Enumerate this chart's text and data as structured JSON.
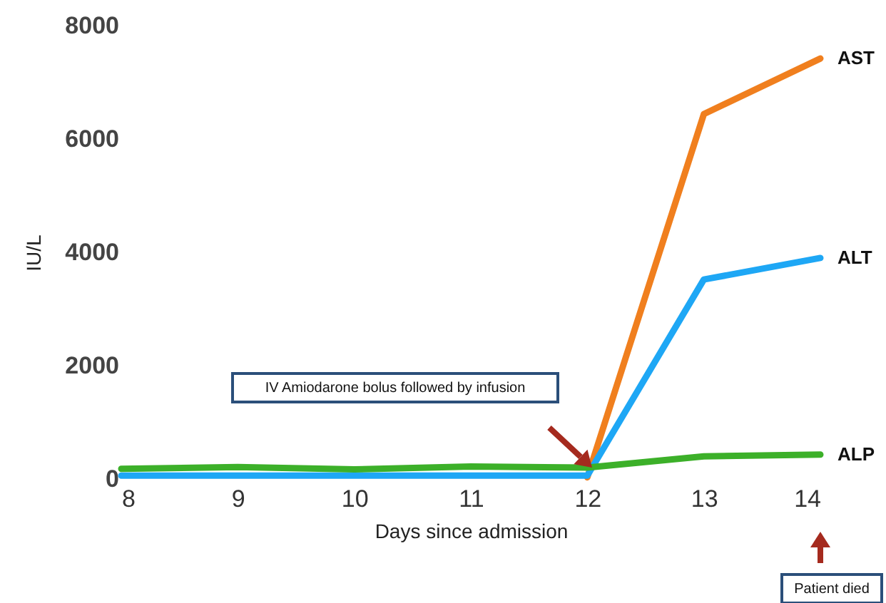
{
  "chart_data": {
    "type": "line",
    "xlabel": "Days since admission",
    "ylabel": "IU/L",
    "x": [
      8,
      9,
      10,
      11,
      12,
      13,
      14
    ],
    "xlim": [
      8,
      14
    ],
    "xticks": [
      8,
      9,
      10,
      11,
      12,
      13,
      14
    ],
    "ylim": [
      0,
      8000
    ],
    "yticks": [
      0,
      2000,
      4000,
      6000,
      8000
    ],
    "series": [
      {
        "name": "AST",
        "color": "#f07f1e",
        "values": [
          null,
          null,
          null,
          null,
          30,
          6440,
          7420
        ]
      },
      {
        "name": "ALT",
        "color": "#1ea7f5",
        "values": [
          60,
          60,
          60,
          60,
          60,
          3520,
          3900
        ]
      },
      {
        "name": "ALP",
        "color": "#3cb029",
        "values": [
          180,
          210,
          170,
          220,
          200,
          400,
          430
        ]
      }
    ],
    "annotations": [
      "IV Amiodarone bolus followed by infusion",
      "Patient died"
    ],
    "grid": false,
    "marker": "none",
    "line_style": "solid"
  }
}
